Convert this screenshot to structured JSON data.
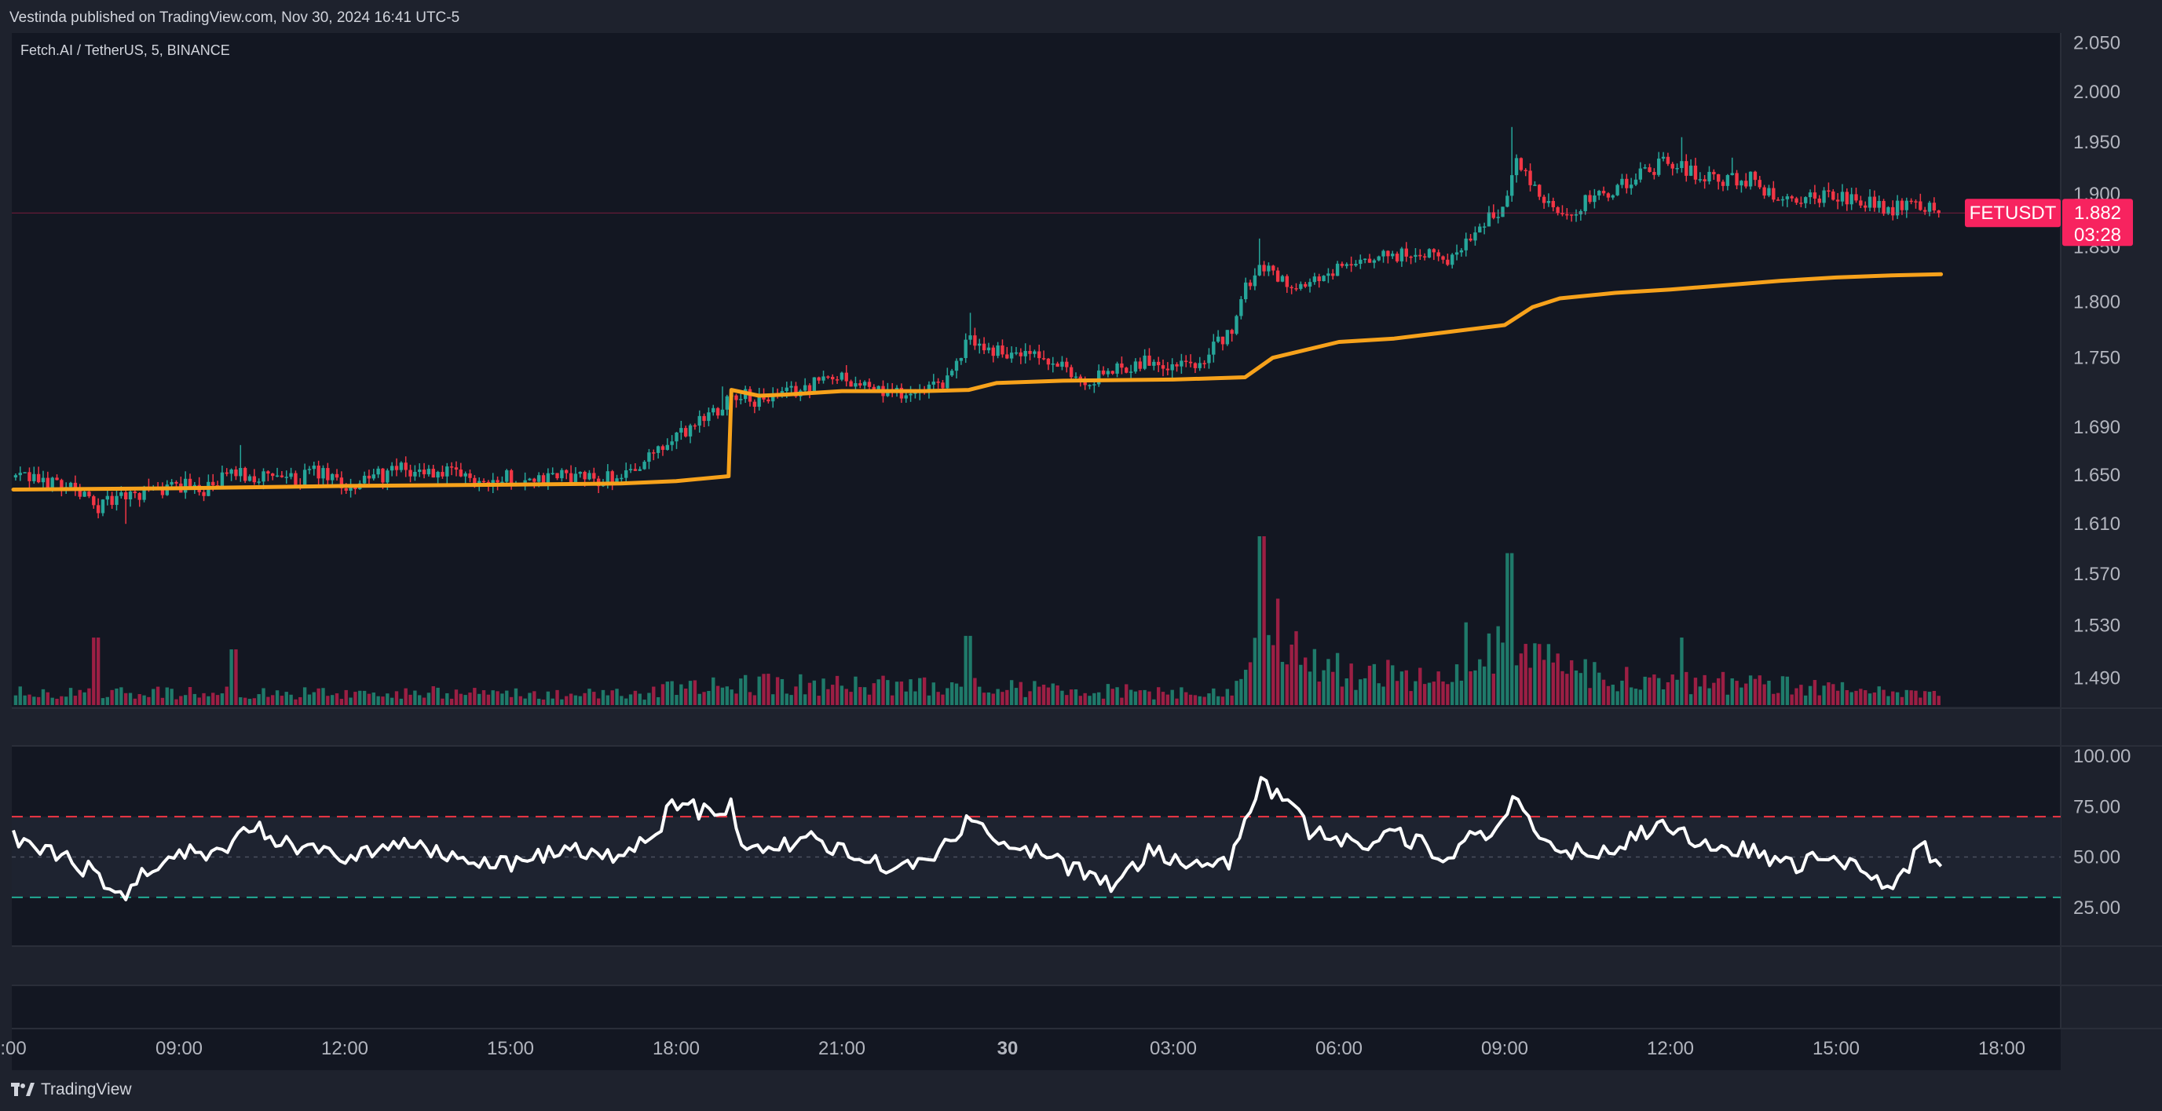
{
  "header": {
    "published": "Vestinda published on TradingView.com, Nov 30, 2024 16:41 UTC-5",
    "symbol_title": "Fetch.AI / TetherUS, 5, BINANCE"
  },
  "footer": {
    "brand": "TradingView"
  },
  "colors": {
    "background": "#131722",
    "frame": "#1e222d",
    "up": "#26a69a",
    "down": "#f23645",
    "volume_up": "#1f7a6a",
    "volume_down": "#9c1f44",
    "vwap": "#f7a21b",
    "rsi_line": "#ffffff",
    "rsi_upper_band": "#f23645",
    "rsi_lower_band": "#22ab94",
    "price_label": "#f7235f"
  },
  "price_label": {
    "name": "FETUSDT",
    "price": "1.882",
    "countdown": "03:28"
  },
  "chart_data": [
    {
      "type": "candlestick",
      "title": "Fetch.AI / TetherUS, 5, BINANCE",
      "interval": "5",
      "x_range": [
        "Nov 29 06:00",
        "Nov 30 18:00"
      ],
      "ylim": [
        1.47,
        2.06
      ],
      "y_scale": "log",
      "y_tick_labels": [
        "2.050",
        "2.000",
        "1.950",
        "1.900",
        "1.850",
        "1.800",
        "1.750",
        "1.690",
        "1.650",
        "1.610",
        "1.570",
        "1.530",
        "1.490"
      ],
      "x_tick_labels": [
        ":00",
        "09:00",
        "12:00",
        "15:00",
        "18:00",
        "21:00",
        "30",
        "03:00",
        "06:00",
        "09:00",
        "12:00",
        "15:00",
        "18:00"
      ],
      "x_tick_hours": [
        6,
        9,
        12,
        15,
        18,
        21,
        24,
        27,
        30,
        33,
        36,
        39,
        42
      ],
      "last_price": 1.882,
      "price_path": [
        [
          6.0,
          1.648
        ],
        [
          7.0,
          1.642
        ],
        [
          7.5,
          1.624
        ],
        [
          8.0,
          1.632
        ],
        [
          8.5,
          1.636
        ],
        [
          9.0,
          1.642
        ],
        [
          9.5,
          1.638
        ],
        [
          10.0,
          1.652
        ],
        [
          10.5,
          1.648
        ],
        [
          11.0,
          1.646
        ],
        [
          11.5,
          1.652
        ],
        [
          12.0,
          1.64
        ],
        [
          12.5,
          1.648
        ],
        [
          13.0,
          1.654
        ],
        [
          13.5,
          1.652
        ],
        [
          14.0,
          1.65
        ],
        [
          14.5,
          1.645
        ],
        [
          15.0,
          1.648
        ],
        [
          15.5,
          1.646
        ],
        [
          16.0,
          1.65
        ],
        [
          16.5,
          1.646
        ],
        [
          17.0,
          1.65
        ],
        [
          17.5,
          1.663
        ],
        [
          18.0,
          1.68
        ],
        [
          18.5,
          1.7
        ],
        [
          18.8,
          1.708
        ],
        [
          19.0,
          1.72
        ],
        [
          19.5,
          1.712
        ],
        [
          20.0,
          1.718
        ],
        [
          20.5,
          1.728
        ],
        [
          21.0,
          1.735
        ],
        [
          21.5,
          1.722
        ],
        [
          22.0,
          1.72
        ],
        [
          22.5,
          1.718
        ],
        [
          23.0,
          1.734
        ],
        [
          23.3,
          1.77
        ],
        [
          23.5,
          1.76
        ],
        [
          24.0,
          1.754
        ],
        [
          24.5,
          1.75
        ],
        [
          25.0,
          1.74
        ],
        [
          25.5,
          1.728
        ],
        [
          26.0,
          1.742
        ],
        [
          26.5,
          1.748
        ],
        [
          27.0,
          1.744
        ],
        [
          27.5,
          1.748
        ],
        [
          28.0,
          1.77
        ],
        [
          28.3,
          1.81
        ],
        [
          28.6,
          1.836
        ],
        [
          29.0,
          1.82
        ],
        [
          29.5,
          1.815
        ],
        [
          30.0,
          1.83
        ],
        [
          30.5,
          1.835
        ],
        [
          31.0,
          1.842
        ],
        [
          31.5,
          1.845
        ],
        [
          32.0,
          1.838
        ],
        [
          32.5,
          1.868
        ],
        [
          33.0,
          1.89
        ],
        [
          33.2,
          1.935
        ],
        [
          33.5,
          1.905
        ],
        [
          34.0,
          1.875
        ],
        [
          34.5,
          1.895
        ],
        [
          35.0,
          1.905
        ],
        [
          35.5,
          1.92
        ],
        [
          36.0,
          1.932
        ],
        [
          36.5,
          1.92
        ],
        [
          37.0,
          1.912
        ],
        [
          37.5,
          1.915
        ],
        [
          38.0,
          1.89
        ],
        [
          38.5,
          1.895
        ],
        [
          39.0,
          1.9
        ],
        [
          39.5,
          1.893
        ],
        [
          40.0,
          1.886
        ],
        [
          40.5,
          1.892
        ],
        [
          40.9,
          1.882
        ]
      ],
      "spikes": [
        [
          8.0,
          1.61
        ],
        [
          10.1,
          1.675
        ],
        [
          18.85,
          1.725
        ],
        [
          23.3,
          1.79
        ],
        [
          28.6,
          1.858
        ],
        [
          33.1,
          1.965
        ],
        [
          36.2,
          1.955
        ],
        [
          37.1,
          1.935
        ]
      ]
    },
    {
      "type": "line",
      "name": "VWAP",
      "overlay": true,
      "points": [
        [
          6.0,
          1.638
        ],
        [
          9.0,
          1.639
        ],
        [
          12.0,
          1.641
        ],
        [
          15.0,
          1.642
        ],
        [
          17.0,
          1.643
        ],
        [
          18.0,
          1.645
        ],
        [
          18.95,
          1.649
        ],
        [
          19.0,
          1.722
        ],
        [
          19.5,
          1.717
        ],
        [
          20.0,
          1.718
        ],
        [
          21.0,
          1.721
        ],
        [
          21.5,
          1.721
        ],
        [
          22.5,
          1.721
        ],
        [
          23.3,
          1.722
        ],
        [
          23.8,
          1.728
        ],
        [
          25.0,
          1.73
        ],
        [
          27.0,
          1.731
        ],
        [
          28.3,
          1.733
        ],
        [
          28.8,
          1.75
        ],
        [
          30.0,
          1.764
        ],
        [
          31.0,
          1.767
        ],
        [
          32.0,
          1.773
        ],
        [
          32.5,
          1.776
        ],
        [
          33.0,
          1.779
        ],
        [
          33.5,
          1.795
        ],
        [
          34.0,
          1.803
        ],
        [
          35.0,
          1.808
        ],
        [
          36.0,
          1.811
        ],
        [
          37.0,
          1.815
        ],
        [
          38.0,
          1.819
        ],
        [
          39.0,
          1.822
        ],
        [
          40.0,
          1.824
        ],
        [
          40.9,
          1.825
        ]
      ]
    },
    {
      "type": "bar",
      "name": "Volume",
      "baseline_on_price_pane": true,
      "shape": [
        [
          6,
          0.08
        ],
        [
          17.5,
          0.08
        ],
        [
          18.5,
          0.14
        ],
        [
          23.0,
          0.12
        ],
        [
          28.0,
          0.07
        ],
        [
          28.6,
          0.55
        ],
        [
          29.5,
          0.25
        ],
        [
          32.0,
          0.16
        ],
        [
          33.0,
          0.45
        ],
        [
          34.0,
          0.22
        ],
        [
          35.5,
          0.18
        ],
        [
          40.9,
          0.06
        ]
      ],
      "peaks": [
        [
          28.6,
          1.0
        ],
        [
          33.1,
          0.9
        ],
        [
          23.3,
          0.41
        ],
        [
          36.2,
          0.4
        ],
        [
          32.3,
          0.49
        ],
        [
          10.0,
          0.33
        ],
        [
          7.5,
          0.4
        ]
      ]
    },
    {
      "type": "line",
      "name": "RSI",
      "ylim": [
        0,
        100
      ],
      "y_tick_labels": [
        "100.00",
        "75.00",
        "50.00",
        "25.00"
      ],
      "y_ticks": [
        100,
        75,
        50,
        25
      ],
      "upper_band": 70,
      "middle_band": 50,
      "lower_band": 30,
      "points": [
        [
          6.0,
          60
        ],
        [
          6.5,
          55
        ],
        [
          7.0,
          48
        ],
        [
          7.5,
          42
        ],
        [
          8.0,
          32
        ],
        [
          8.5,
          44
        ],
        [
          9.0,
          54
        ],
        [
          9.5,
          51
        ],
        [
          10.0,
          58
        ],
        [
          10.2,
          68
        ],
        [
          10.5,
          62
        ],
        [
          11.0,
          55
        ],
        [
          11.5,
          56
        ],
        [
          12.0,
          50
        ],
        [
          12.5,
          53
        ],
        [
          13.0,
          58
        ],
        [
          13.5,
          55
        ],
        [
          14.0,
          48
        ],
        [
          14.5,
          49
        ],
        [
          15.0,
          47
        ],
        [
          15.5,
          50
        ],
        [
          16.0,
          53
        ],
        [
          16.5,
          51
        ],
        [
          17.0,
          50
        ],
        [
          17.5,
          58
        ],
        [
          17.8,
          70
        ],
        [
          18.0,
          78
        ],
        [
          18.5,
          72
        ],
        [
          19.0,
          76
        ],
        [
          19.1,
          58
        ],
        [
          19.5,
          55
        ],
        [
          20.0,
          56
        ],
        [
          20.5,
          60
        ],
        [
          21.0,
          53
        ],
        [
          21.5,
          47
        ],
        [
          22.0,
          45
        ],
        [
          22.5,
          46
        ],
        [
          23.0,
          58
        ],
        [
          23.3,
          72
        ],
        [
          23.6,
          60
        ],
        [
          24.0,
          55
        ],
        [
          24.5,
          52
        ],
        [
          25.0,
          46
        ],
        [
          25.5,
          40
        ],
        [
          26.0,
          36
        ],
        [
          26.5,
          52
        ],
        [
          27.0,
          50
        ],
        [
          27.5,
          46
        ],
        [
          28.0,
          47
        ],
        [
          28.3,
          68
        ],
        [
          28.6,
          86
        ],
        [
          29.0,
          78
        ],
        [
          29.5,
          62
        ],
        [
          30.0,
          58
        ],
        [
          30.5,
          55
        ],
        [
          31.0,
          62
        ],
        [
          31.5,
          56
        ],
        [
          32.0,
          50
        ],
        [
          32.4,
          66
        ],
        [
          32.7,
          55
        ],
        [
          33.0,
          70
        ],
        [
          33.2,
          78
        ],
        [
          33.6,
          58
        ],
        [
          34.0,
          52
        ],
        [
          34.5,
          54
        ],
        [
          35.0,
          53
        ],
        [
          35.5,
          62
        ],
        [
          36.0,
          66
        ],
        [
          36.5,
          58
        ],
        [
          37.0,
          50
        ],
        [
          37.5,
          55
        ],
        [
          38.0,
          45
        ],
        [
          38.5,
          48
        ],
        [
          39.0,
          47
        ],
        [
          39.5,
          43
        ],
        [
          40.0,
          35
        ],
        [
          40.3,
          45
        ],
        [
          40.6,
          56
        ],
        [
          40.8,
          47
        ],
        [
          40.9,
          45
        ]
      ]
    }
  ]
}
